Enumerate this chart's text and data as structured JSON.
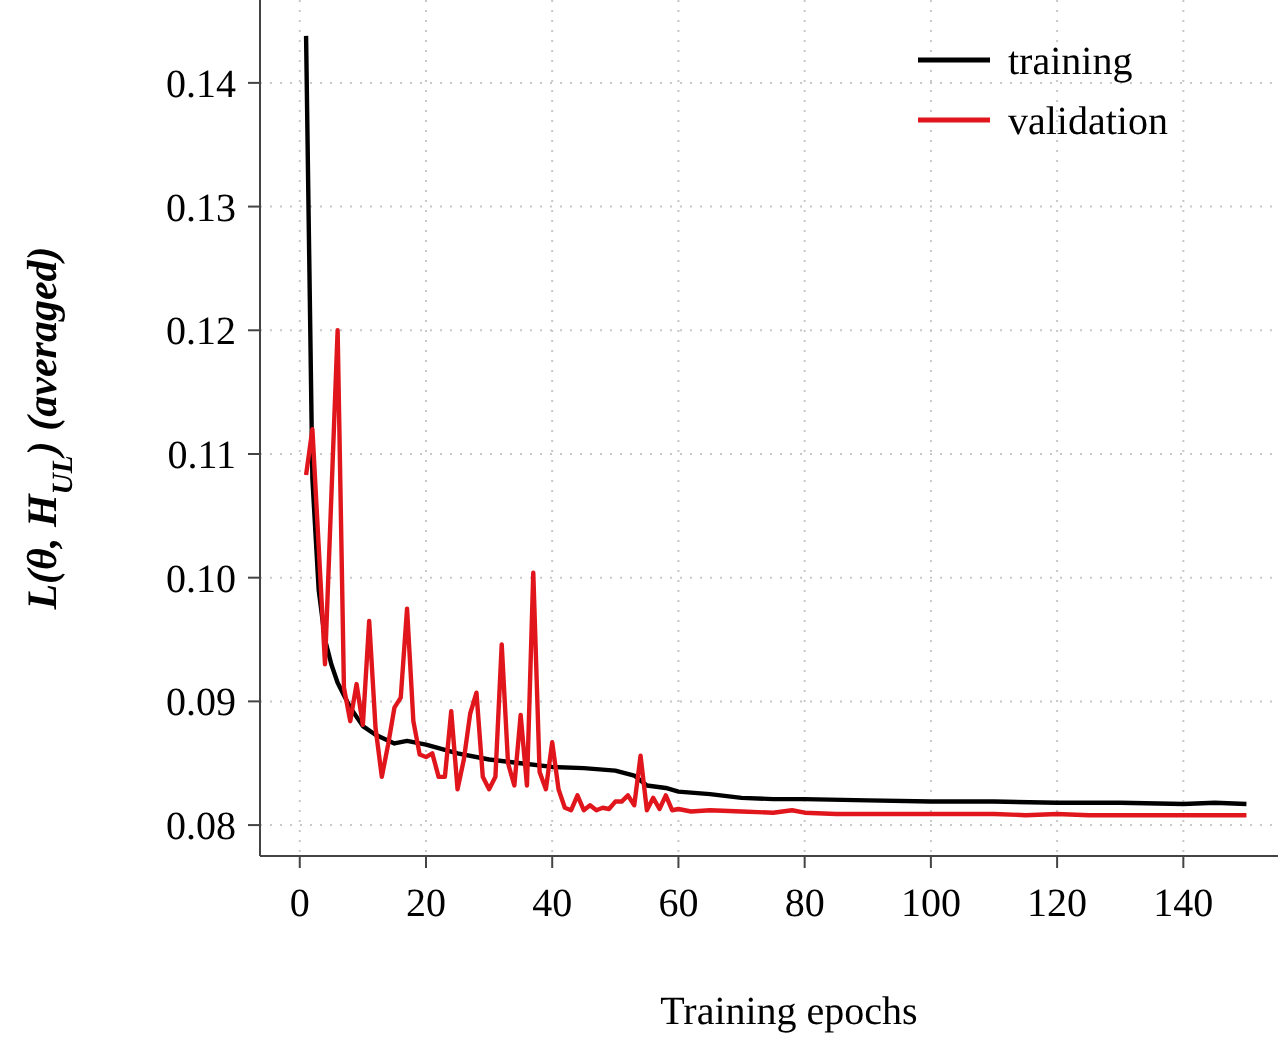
{
  "chart_data": {
    "type": "line",
    "xlabel": "Training epochs",
    "ylabel": "L(θ, H$_{UL}$) (averaged)",
    "xlim": [
      -6.3,
      155
    ],
    "xticks": [
      0,
      20,
      40,
      60,
      80,
      100,
      120,
      140
    ],
    "ylim": [
      0.0775,
      0.1467
    ],
    "yticks": [
      {
        "value": 0.08,
        "label": "0.08"
      },
      {
        "value": 0.09,
        "label": "0.09"
      },
      {
        "value": 0.1,
        "label": "0.10"
      },
      {
        "value": 0.11,
        "label": "0.11"
      },
      {
        "value": 0.12,
        "label": "0.12"
      },
      {
        "value": 0.13,
        "label": "0.13"
      },
      {
        "value": 0.14,
        "label": "0.14"
      }
    ],
    "grid": true,
    "legend": "top right",
    "line_style": "solid",
    "series": [
      {
        "name": "training",
        "color": "#000000",
        "x": [
          1,
          2,
          3,
          4,
          5,
          6,
          7,
          8,
          10,
          12,
          15,
          17,
          20,
          25,
          30,
          35,
          40,
          45,
          50,
          53,
          55,
          58,
          60,
          65,
          70,
          75,
          80,
          90,
          100,
          110,
          120,
          130,
          140,
          145,
          150
        ],
        "values": [
          0.1438,
          0.108,
          0.099,
          0.095,
          0.093,
          0.0915,
          0.0905,
          0.0895,
          0.088,
          0.0873,
          0.0866,
          0.0868,
          0.0865,
          0.0858,
          0.0853,
          0.085,
          0.0847,
          0.0846,
          0.0844,
          0.084,
          0.0832,
          0.083,
          0.0827,
          0.0825,
          0.0822,
          0.0821,
          0.0821,
          0.082,
          0.0819,
          0.0819,
          0.0818,
          0.0818,
          0.0817,
          0.0818,
          0.0817
        ]
      },
      {
        "name": "validation",
        "color": "#e0161c",
        "x": [
          1,
          2,
          3,
          4,
          5,
          6,
          7,
          8,
          9,
          10,
          11,
          12,
          13,
          14,
          15,
          16,
          17,
          18,
          19,
          20,
          21,
          22,
          23,
          24,
          25,
          26,
          27,
          28,
          29,
          30,
          31,
          32,
          33,
          34,
          35,
          36,
          37,
          38,
          39,
          40,
          41,
          42,
          43,
          44,
          45,
          46,
          47,
          48,
          49,
          50,
          51,
          52,
          53,
          54,
          55,
          56,
          57,
          58,
          59,
          60,
          62,
          65,
          70,
          75,
          78,
          80,
          85,
          90,
          95,
          100,
          105,
          110,
          115,
          120,
          125,
          130,
          135,
          140,
          145,
          150
        ],
        "values": [
          0.1083,
          0.112,
          0.1025,
          0.093,
          0.1065,
          0.12,
          0.0911,
          0.0884,
          0.0914,
          0.0881,
          0.0965,
          0.0879,
          0.0839,
          0.0865,
          0.0895,
          0.0903,
          0.0975,
          0.0884,
          0.0857,
          0.0855,
          0.0858,
          0.0839,
          0.0839,
          0.0892,
          0.0829,
          0.0853,
          0.089,
          0.0907,
          0.0839,
          0.0829,
          0.0839,
          0.0946,
          0.085,
          0.0832,
          0.0889,
          0.0832,
          0.1004,
          0.0843,
          0.0829,
          0.0867,
          0.0829,
          0.0814,
          0.0812,
          0.0824,
          0.0812,
          0.0816,
          0.0812,
          0.0814,
          0.0813,
          0.0819,
          0.0819,
          0.0824,
          0.0816,
          0.0856,
          0.0812,
          0.0822,
          0.0813,
          0.0824,
          0.0812,
          0.0813,
          0.0811,
          0.0812,
          0.0811,
          0.081,
          0.0812,
          0.081,
          0.0809,
          0.0809,
          0.0809,
          0.0809,
          0.0809,
          0.0809,
          0.0808,
          0.0809,
          0.0808,
          0.0808,
          0.0808,
          0.0808,
          0.0808,
          0.0808
        ]
      }
    ]
  }
}
